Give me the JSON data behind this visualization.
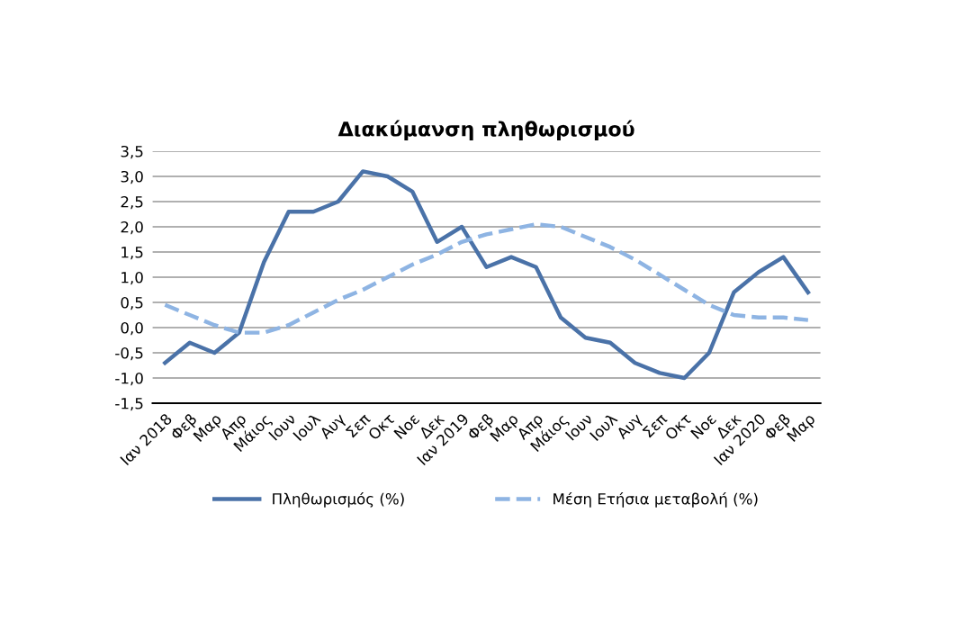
{
  "chart_data": {
    "type": "line",
    "title": "Διακύμανση πληθωρισμού",
    "categories": [
      "Ιαν 2018",
      "Φεβ",
      "Μαρ",
      "Απρ",
      "Μάιος",
      "Ιουν",
      "Ιουλ",
      "Αυγ",
      "Σεπ",
      "Οκτ",
      "Νοε",
      "Δεκ",
      "Ιαν 2019",
      "Φεβ",
      "Μαρ",
      "Απρ",
      "Μάιος",
      "Ιουν",
      "Ιουλ",
      "Αυγ",
      "Σεπ",
      "Οκτ",
      "Νοε",
      "Δεκ",
      "Ιαν 2020",
      "Φεβ",
      "Μαρ"
    ],
    "series": [
      {
        "name": "Πληθωρισμός (%)",
        "color": "#4a72a8",
        "line_style": "solid",
        "values": [
          -0.7,
          -0.3,
          -0.5,
          -0.1,
          1.3,
          2.3,
          2.3,
          2.5,
          3.1,
          3.0,
          2.7,
          1.7,
          2.0,
          1.2,
          1.4,
          1.2,
          0.2,
          -0.2,
          -0.3,
          -0.7,
          -0.9,
          -1.0,
          -0.5,
          0.7,
          1.1,
          1.4,
          0.7
        ]
      },
      {
        "name": "Μέση Ετήσια μεταβολή (%)",
        "color": "#8eb4e3",
        "line_style": "dashed",
        "values": [
          0.45,
          0.25,
          0.05,
          -0.1,
          -0.1,
          0.05,
          0.3,
          0.55,
          0.75,
          1.0,
          1.25,
          1.45,
          1.7,
          1.85,
          1.95,
          2.05,
          2.0,
          1.8,
          1.6,
          1.35,
          1.05,
          0.75,
          0.45,
          0.25,
          0.2,
          0.2,
          0.15
        ]
      }
    ],
    "ylim": [
      -1.5,
      3.5
    ],
    "yticks": [
      {
        "value": -1.5,
        "label": "-1,5"
      },
      {
        "value": -1.0,
        "label": "-1,0"
      },
      {
        "value": -0.5,
        "label": "-0,5"
      },
      {
        "value": 0.0,
        "label": "0,0"
      },
      {
        "value": 0.5,
        "label": "0,5"
      },
      {
        "value": 1.0,
        "label": "1,0"
      },
      {
        "value": 1.5,
        "label": "1,5"
      },
      {
        "value": 2.0,
        "label": "2,0"
      },
      {
        "value": 2.5,
        "label": "2,5"
      },
      {
        "value": 3.0,
        "label": "3,0"
      },
      {
        "value": 3.5,
        "label": "3,5"
      }
    ],
    "grid": "y",
    "legend": "bottom",
    "marker": "none"
  }
}
